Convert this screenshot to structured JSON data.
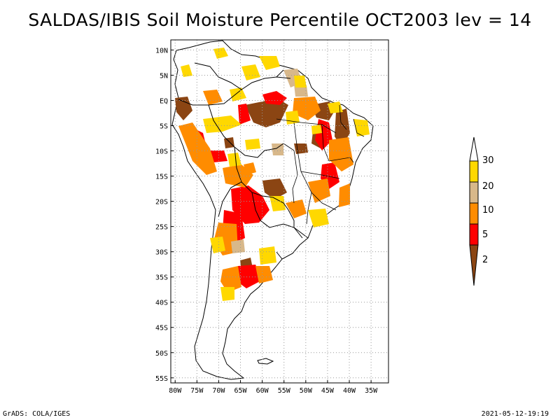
{
  "title": "SALDAS/IBIS Soil Moisture Percentile OCT2003 lev = 14",
  "footer": {
    "left": "GrADS: COLA/IGES",
    "right": "2021-05-12-19:19"
  },
  "map": {
    "lat_labels": [
      "10N",
      "5N",
      "EQ",
      "5S",
      "10S",
      "15S",
      "20S",
      "25S",
      "30S",
      "35S",
      "40S",
      "45S",
      "50S",
      "55S"
    ],
    "lat_values": [
      10,
      5,
      0,
      -5,
      -10,
      -15,
      -20,
      -25,
      -30,
      -35,
      -40,
      -45,
      -50,
      -55
    ],
    "lon_labels": [
      "80W",
      "75W",
      "70W",
      "65W",
      "60W",
      "55W",
      "50W",
      "45W",
      "40W",
      "35W"
    ],
    "lon_values": [
      -80,
      -75,
      -70,
      -65,
      -60,
      -55,
      -50,
      -45,
      -40,
      -35
    ],
    "lon_range": [
      -81,
      -31
    ],
    "lat_range": [
      12,
      -56
    ],
    "grid": "dotted"
  },
  "colorbar": {
    "labels": [
      "30",
      "20",
      "10",
      "5",
      "2"
    ],
    "colors": [
      "#ffffff",
      "#ffd800",
      "#d8b88a",
      "#ff8c00",
      "#ff0000",
      "#8b4513"
    ]
  }
}
